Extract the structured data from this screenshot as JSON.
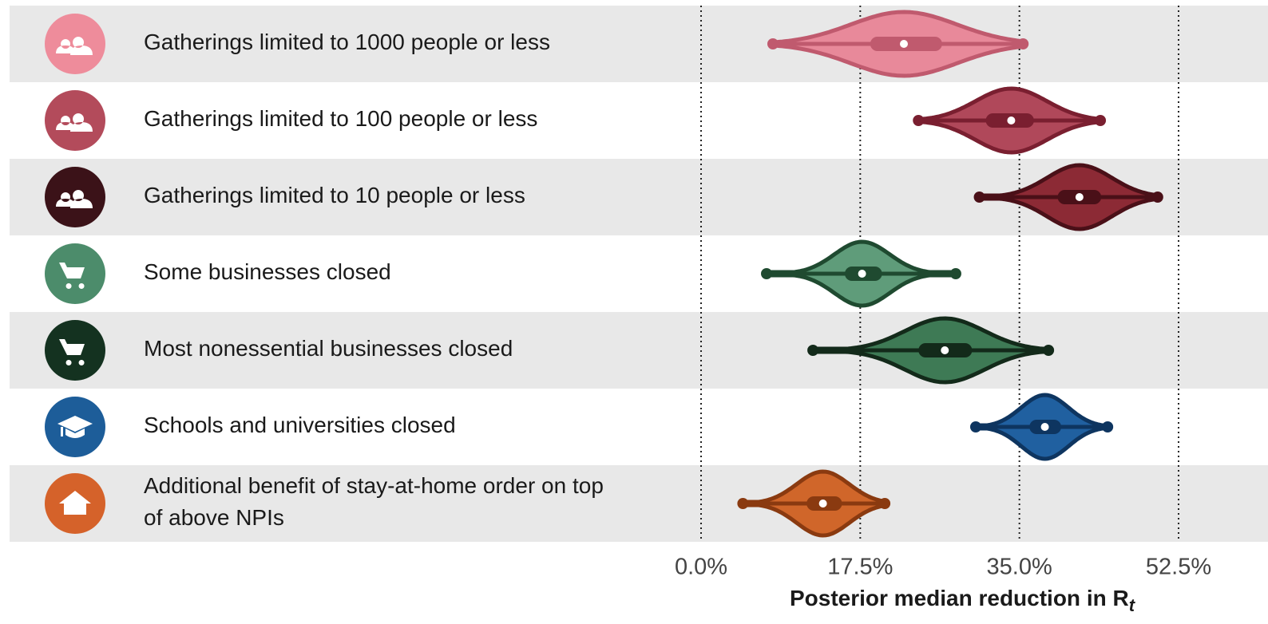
{
  "chart_data": {
    "type": "violin",
    "categories": [
      "Gatherings limited to 1000 people or less",
      "Gatherings limited to 100 people or less",
      "Gatherings limited to 10 people or less",
      "Some businesses closed",
      "Most nonessential businesses closed",
      "Schools and universities closed",
      "Additional benefit of stay-at-home order on top of above NPIs"
    ],
    "median": [
      22.3,
      34.1,
      41.6,
      17.7,
      26.8,
      37.8,
      13.4
    ],
    "q1": [
      18.6,
      31.3,
      39.2,
      15.8,
      23.9,
      36.1,
      11.6
    ],
    "q3": [
      26.5,
      36.6,
      44.0,
      19.9,
      29.8,
      39.6,
      15.5
    ],
    "min": [
      7.9,
      23.9,
      30.6,
      7.2,
      12.3,
      30.2,
      4.6
    ],
    "max": [
      35.4,
      43.9,
      50.2,
      28.0,
      38.2,
      44.7,
      20.2
    ],
    "colors": [
      "#e8899a",
      "#b0485a",
      "#8c2a35",
      "#5f9c7a",
      "#3e7a55",
      "#2060a0",
      "#d0662a"
    ],
    "outline_colors": [
      "#c05a6e",
      "#7a1f30",
      "#4a1018",
      "#1f4a30",
      "#132a1a",
      "#0e3560",
      "#8a3a10"
    ],
    "xlim": [
      0,
      60
    ],
    "xticks": [
      {
        "value": 0,
        "label": "0.0%"
      },
      {
        "value": 17.5,
        "label": "17.5%"
      },
      {
        "value": 35,
        "label": "35.0%"
      },
      {
        "value": 52.5,
        "label": "52.5%"
      }
    ],
    "grid": true,
    "xlabel": "Posterior median reduction in R",
    "xlabel_subscript": "t"
  }
}
